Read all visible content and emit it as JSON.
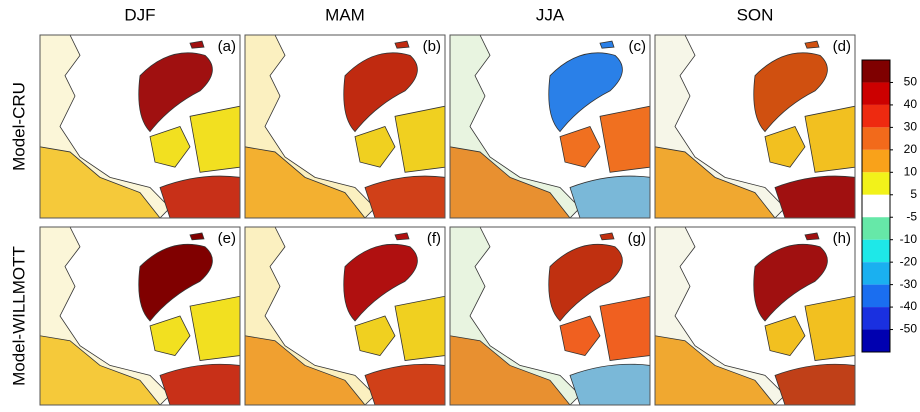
{
  "headers": [
    "DJF",
    "MAM",
    "JJA",
    "SON"
  ],
  "row_labels": [
    "Model-CRU",
    "Model-WILLMOTT"
  ],
  "panels": [
    "(a)",
    "(b)",
    "(c)",
    "(d)",
    "(e)",
    "(f)",
    "(g)",
    "(h)"
  ],
  "colorbar": {
    "ticks": [
      50,
      40,
      30,
      20,
      10,
      5,
      -5,
      -10,
      -20,
      -30,
      -40,
      -50
    ],
    "colors": [
      "#7f0000",
      "#cc0000",
      "#ee2a10",
      "#f26a1b",
      "#f9a21a",
      "#f2f21a",
      "#ffffff",
      "#66e8a8",
      "#1ee8e8",
      "#1ab0f0",
      "#1a6ef0",
      "#1a30e0",
      "#0000b0"
    ]
  }
}
